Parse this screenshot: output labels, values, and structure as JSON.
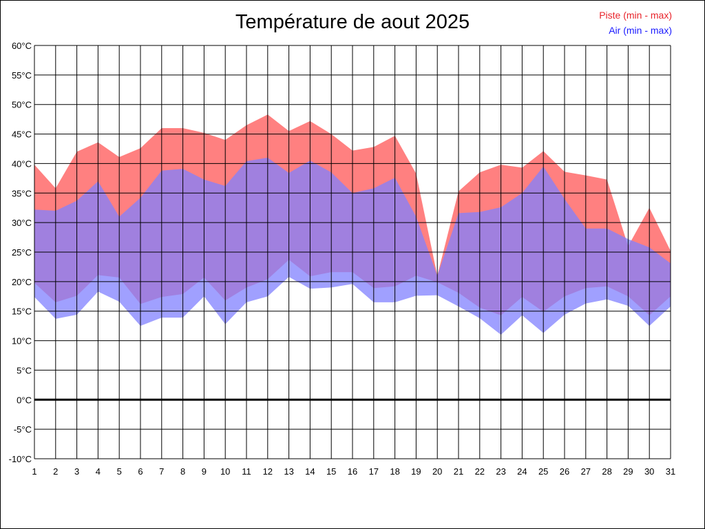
{
  "chart_data": {
    "type": "area",
    "title": "Température de aout 2025",
    "legend": [
      {
        "label": "Piste (min - max)",
        "color": "#ff8080"
      },
      {
        "label": "Air (min - max)",
        "color": "#8080ff"
      }
    ],
    "ylim": [
      -10,
      60
    ],
    "ytick_step": 5,
    "ytick_labels": [
      "60°C",
      "55°C",
      "50°C",
      "45°C",
      "40°C",
      "35°C",
      "30°C",
      "25°C",
      "20°C",
      "15°C",
      "10°C",
      "5°C",
      "0°C",
      "-5°C",
      "-10°C"
    ],
    "x": [
      1,
      2,
      3,
      4,
      5,
      6,
      7,
      8,
      9,
      10,
      11,
      12,
      13,
      14,
      15,
      16,
      17,
      18,
      19,
      20,
      21,
      22,
      23,
      24,
      25,
      26,
      27,
      28,
      29,
      30,
      31
    ],
    "series": [
      {
        "name": "Piste (min - max)",
        "color": "#ff8080",
        "min": [
          19.8,
          16.5,
          17.6,
          21.1,
          20.7,
          16.2,
          17.4,
          17.9,
          20.7,
          16.8,
          19.0,
          20.4,
          23.7,
          20.9,
          21.6,
          21.6,
          18.9,
          19.2,
          21.0,
          19.9,
          18.1,
          15.6,
          14.3,
          17.4,
          14.9,
          17.5,
          18.9,
          19.2,
          17.5,
          14.3,
          17.5
        ],
        "max": [
          39.8,
          35.8,
          42.0,
          43.6,
          41.1,
          42.6,
          46.0,
          46.0,
          45.2,
          44.0,
          46.5,
          48.3,
          45.5,
          47.2,
          45.0,
          42.2,
          42.8,
          44.7,
          38.3,
          21.0,
          35.3,
          38.5,
          39.8,
          39.3,
          42.1,
          38.6,
          38.0,
          37.3,
          26.0,
          32.5,
          25.2
        ]
      },
      {
        "name": "Air (min - max)",
        "color": "#8080ff",
        "min": [
          17.4,
          13.7,
          14.4,
          18.3,
          16.6,
          12.5,
          13.9,
          13.9,
          17.5,
          12.8,
          16.5,
          17.5,
          20.8,
          18.8,
          19.0,
          19.6,
          16.5,
          16.5,
          17.6,
          17.7,
          15.8,
          13.8,
          11.0,
          14.3,
          11.3,
          14.4,
          16.3,
          17.0,
          15.9,
          12.5,
          15.8
        ],
        "max": [
          32.2,
          32.0,
          33.7,
          37.0,
          31.0,
          34.2,
          38.8,
          39.1,
          37.3,
          36.2,
          40.4,
          41.0,
          38.4,
          40.5,
          38.5,
          35.0,
          35.8,
          37.6,
          31.0,
          21.0,
          31.6,
          31.8,
          32.6,
          35.0,
          39.5,
          34.0,
          29.0,
          29.0,
          27.2,
          25.8,
          23.1
        ]
      }
    ],
    "grid": true,
    "zero_line": true
  }
}
